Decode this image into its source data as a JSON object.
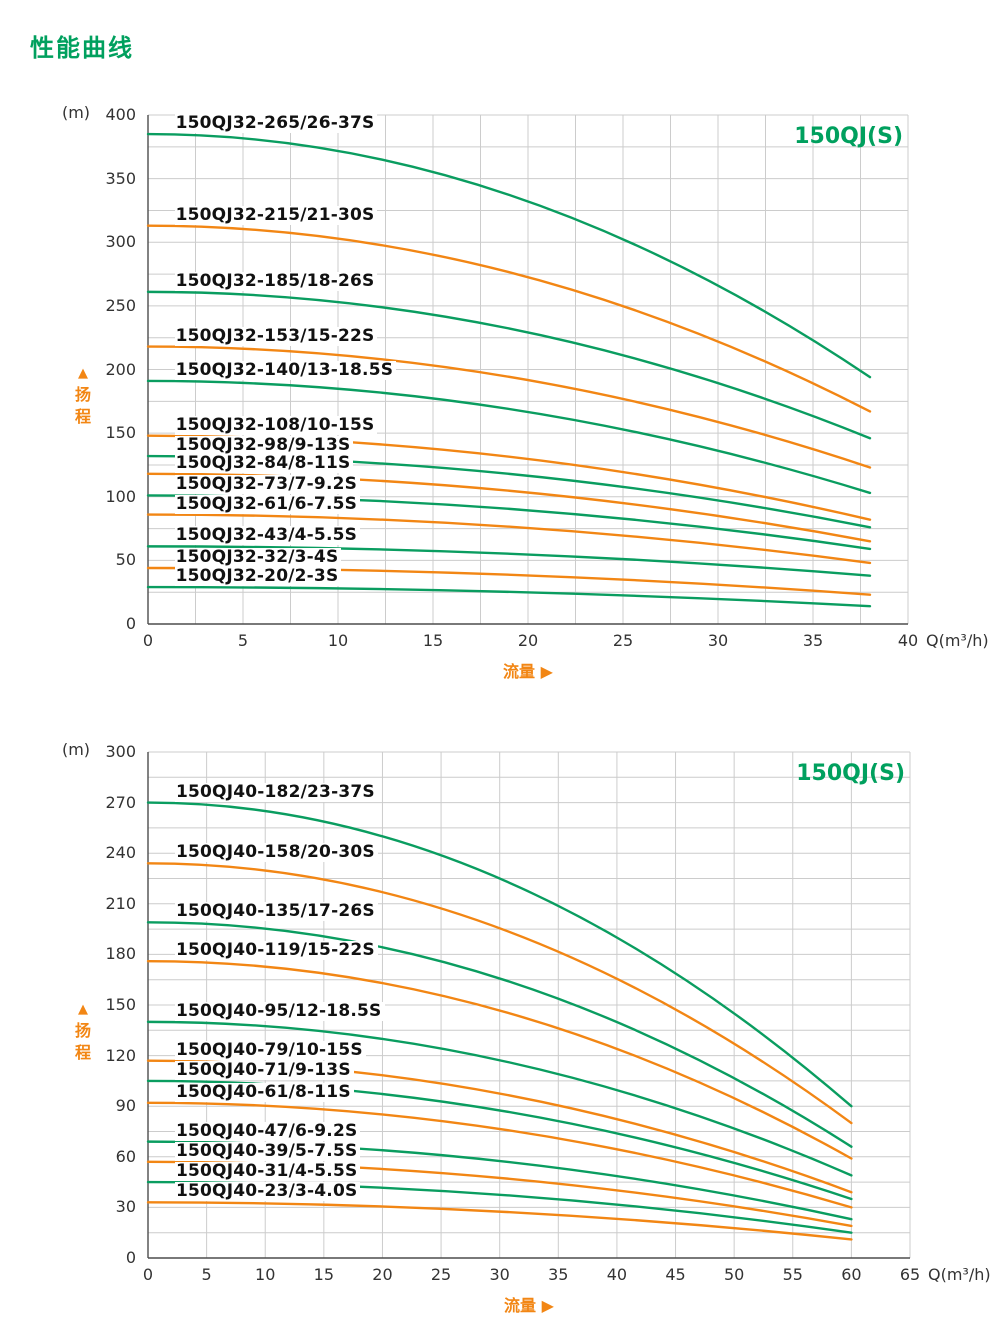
{
  "page_title": "性能曲线",
  "colors": {
    "green": "#0a9d60",
    "orange": "#f28614",
    "grid": "#cccccc",
    "axis": "#4d4d4d",
    "tick_text": "#333333",
    "curve_label_text": "#111111",
    "title_green": "#00a05e"
  },
  "chart_data": [
    {
      "type": "line",
      "title": "150QJ(S)",
      "y_unit": "(m)",
      "x_unit": "Q(m³/h)",
      "y_axis_title": "扬程",
      "x_axis_title": "流量",
      "y_axis_marker": "▲",
      "x_axis_marker": "▶",
      "xlim": [
        0,
        40
      ],
      "ylim": [
        0,
        400
      ],
      "x_tick_step": 5,
      "y_tick_step": 50,
      "x_grid_step": 2.5,
      "y_grid_step": 25,
      "curve_end_x": 38,
      "label_x": 1.4,
      "series": [
        {
          "label": "150QJ32-265/26-37S",
          "color": "green",
          "head_start_m": 385,
          "head_end_m": 194
        },
        {
          "label": "150QJ32-215/21-30S",
          "color": "orange",
          "head_start_m": 313,
          "head_end_m": 167
        },
        {
          "label": "150QJ32-185/18-26S",
          "color": "green",
          "head_start_m": 261,
          "head_end_m": 146
        },
        {
          "label": "150QJ32-153/15-22S",
          "color": "orange",
          "head_start_m": 218,
          "head_end_m": 123
        },
        {
          "label": "150QJ32-140/13-18.5S",
          "color": "green",
          "head_start_m": 191,
          "head_end_m": 103
        },
        {
          "label": "150QJ32-108/10-15S",
          "color": "orange",
          "head_start_m": 148,
          "head_end_m": 82
        },
        {
          "label": "150QJ32-98/9-13S",
          "color": "green",
          "head_start_m": 132,
          "head_end_m": 76
        },
        {
          "label": "150QJ32-84/8-11S",
          "color": "orange",
          "head_start_m": 118,
          "head_end_m": 65
        },
        {
          "label": "150QJ32-73/7-9.2S",
          "color": "green",
          "head_start_m": 101,
          "head_end_m": 59
        },
        {
          "label": "150QJ32-61/6-7.5S",
          "color": "orange",
          "head_start_m": 86,
          "head_end_m": 48
        },
        {
          "label": "150QJ32-43/4-5.5S",
          "color": "green",
          "head_start_m": 61,
          "head_end_m": 38
        },
        {
          "label": "150QJ32-32/3-4S",
          "color": "orange",
          "head_start_m": 44,
          "head_end_m": 23
        },
        {
          "label": "150QJ32-20/2-3S",
          "color": "green",
          "head_start_m": 29,
          "head_end_m": 14
        }
      ]
    },
    {
      "type": "line",
      "title": "150QJ(S)",
      "y_unit": "(m)",
      "x_unit": "Q(m³/h)",
      "y_axis_title": "扬程",
      "x_axis_title": "流量",
      "y_axis_marker": "▲",
      "x_axis_marker": "▶",
      "xlim": [
        0,
        65
      ],
      "ylim": [
        0,
        300
      ],
      "x_tick_step": 5,
      "y_tick_step": 30,
      "x_grid_step": 5,
      "y_grid_step": 15,
      "curve_end_x": 60,
      "label_x": 2.3,
      "series": [
        {
          "label": "150QJ40-182/23-37S",
          "color": "green",
          "head_start_m": 270,
          "head_end_m": 90
        },
        {
          "label": "150QJ40-158/20-30S",
          "color": "orange",
          "head_start_m": 234,
          "head_end_m": 80
        },
        {
          "label": "150QJ40-135/17-26S",
          "color": "green",
          "head_start_m": 199,
          "head_end_m": 66
        },
        {
          "label": "150QJ40-119/15-22S",
          "color": "orange",
          "head_start_m": 176,
          "head_end_m": 59
        },
        {
          "label": "150QJ40-95/12-18.5S",
          "color": "green",
          "head_start_m": 140,
          "head_end_m": 49
        },
        {
          "label": "150QJ40-79/10-15S",
          "color": "orange",
          "head_start_m": 117,
          "head_end_m": 39
        },
        {
          "label": "150QJ40-71/9-13S",
          "color": "green",
          "head_start_m": 105,
          "head_end_m": 35
        },
        {
          "label": "150QJ40-61/8-11S",
          "color": "orange",
          "head_start_m": 92,
          "head_end_m": 30
        },
        {
          "label": "150QJ40-47/6-9.2S",
          "color": "green",
          "head_start_m": 69,
          "head_end_m": 23
        },
        {
          "label": "150QJ40-39/5-7.5S",
          "color": "orange",
          "head_start_m": 57,
          "head_end_m": 19
        },
        {
          "label": "150QJ40-31/4-5.5S",
          "color": "green",
          "head_start_m": 45,
          "head_end_m": 15
        },
        {
          "label": "150QJ40-23/3-4.0S",
          "color": "orange",
          "head_start_m": 33,
          "head_end_m": 11
        }
      ]
    }
  ]
}
